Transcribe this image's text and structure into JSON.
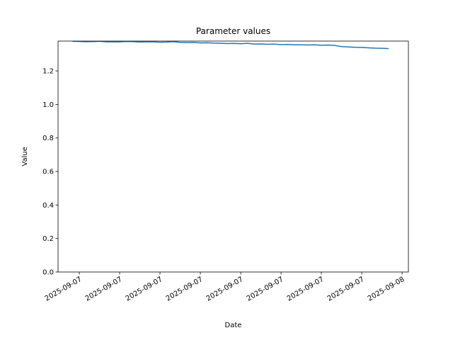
{
  "chart_data": {
    "type": "line",
    "title": "Parameter values",
    "x_label": "Date",
    "y_label": "Value",
    "x": [
      -0.5,
      0,
      0.5,
      1,
      1.5,
      2,
      2.5,
      3,
      3.5,
      4,
      4.5,
      5,
      5.5,
      6,
      6.5,
      7,
      7.5,
      8,
      8.5,
      9,
      9.5,
      10,
      10.5,
      11,
      11.5,
      12,
      12.5,
      13,
      13.5,
      14,
      14.5,
      15,
      15.5,
      16,
      16.5,
      17,
      17.5,
      18,
      18.5,
      19,
      19.5,
      20,
      20.5,
      21,
      21.5,
      22,
      22.5,
      23
    ],
    "series": [
      {
        "color": "#1f77b4",
        "values": [
          1.377,
          1.376,
          1.374,
          1.375,
          1.377,
          1.373,
          1.374,
          1.373,
          1.376,
          1.375,
          1.372,
          1.374,
          1.373,
          1.371,
          1.372,
          1.375,
          1.37,
          1.369,
          1.37,
          1.367,
          1.368,
          1.366,
          1.365,
          1.363,
          1.364,
          1.362,
          1.365,
          1.36,
          1.361,
          1.359,
          1.36,
          1.357,
          1.358,
          1.356,
          1.356,
          1.355,
          1.356,
          1.353,
          1.354,
          1.352,
          1.345,
          1.343,
          1.341,
          1.34,
          1.338,
          1.336,
          1.335,
          1.333
        ]
      }
    ],
    "xlim": [
      -1.58,
      24.47
    ],
    "xticks": [
      {
        "value": 0,
        "label": "2025-09-07"
      },
      {
        "value": 3,
        "label": "2025-09-07"
      },
      {
        "value": 6,
        "label": "2025-09-07"
      },
      {
        "value": 9,
        "label": "2025-09-07"
      },
      {
        "value": 12,
        "label": "2025-09-07"
      },
      {
        "value": 15,
        "label": "2025-09-07"
      },
      {
        "value": 18,
        "label": "2025-09-07"
      },
      {
        "value": 21,
        "label": "2025-09-07"
      },
      {
        "value": 24,
        "label": "2025-09-08"
      }
    ],
    "ylim": [
      0,
      1.378
    ],
    "yticks": [
      {
        "value": 0,
        "label": "0.0"
      },
      0.2,
      0.4,
      0.6,
      0.8,
      {
        "value": 1,
        "label": "1.0"
      },
      1.2
    ]
  }
}
